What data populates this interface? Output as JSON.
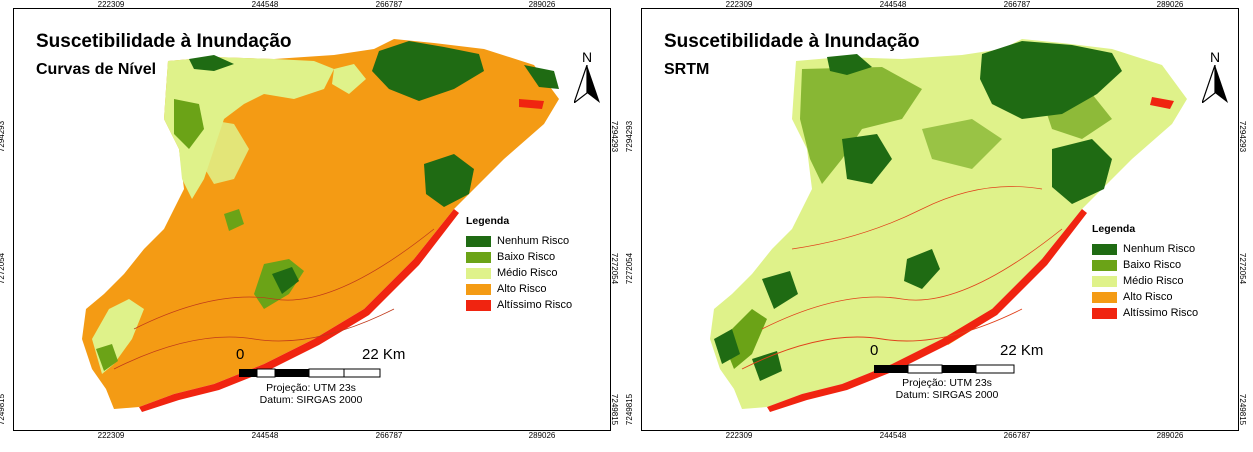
{
  "colors": {
    "nenhum": "#1f6b13",
    "baixo": "#6ba317",
    "medio": "#dff28a",
    "alto": "#f49b14",
    "altissimo": "#f02410"
  },
  "axes": {
    "x_ticks": [
      "222309",
      "244548",
      "266787",
      "289026"
    ],
    "y_ticks": [
      "7294293",
      "7272054",
      "7249815"
    ]
  },
  "legend": {
    "title": "Legenda",
    "items": [
      {
        "label": "Nenhum Risco",
        "color": "#1f6b13"
      },
      {
        "label": "Baixo Risco",
        "color": "#6ba317"
      },
      {
        "label": "Médio Risco",
        "color": "#dff28a"
      },
      {
        "label": "Alto Risco",
        "color": "#f49b14"
      },
      {
        "label": "Altíssimo Risco",
        "color": "#f02410"
      }
    ]
  },
  "maps": [
    {
      "title": "Suscetibilidade à Inundação",
      "subtitle": "Curvas de Nível",
      "dominant": "alto"
    },
    {
      "title": "Suscetibilidade à Inundação",
      "subtitle": "SRTM",
      "dominant": "medio"
    }
  ],
  "north_label": "N",
  "scale": {
    "zero": "0",
    "end": "22 Km"
  },
  "projection": "Projeção: UTM 23s",
  "datum": "Datum: SIRGAS 2000"
}
